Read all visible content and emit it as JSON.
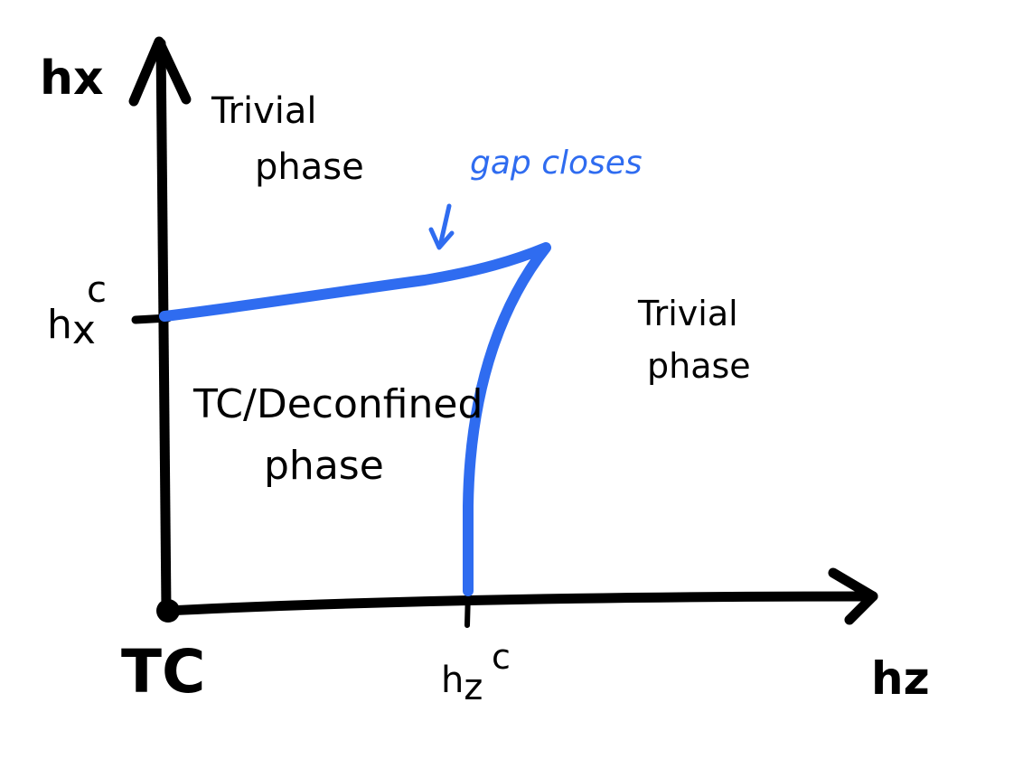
{
  "axes": {
    "y_label": "hx",
    "x_label": "hz",
    "origin_label": "TC",
    "x_critical_base": "h",
    "x_critical_sub": "z",
    "x_critical_sup": "c",
    "y_critical_base": "h",
    "y_critical_sub": "x",
    "y_critical_sup": "c"
  },
  "regions": {
    "trivial_top_line1": "Trivial",
    "trivial_top_line2": "phase",
    "trivial_right_line1": "Trivial",
    "trivial_right_line2": "phase",
    "tc_line1": "TC/Deconfined",
    "tc_line2": "phase"
  },
  "annotation": {
    "text": "gap closes"
  },
  "colors": {
    "ink": "#000000",
    "boundary": "#2f6cf0"
  }
}
